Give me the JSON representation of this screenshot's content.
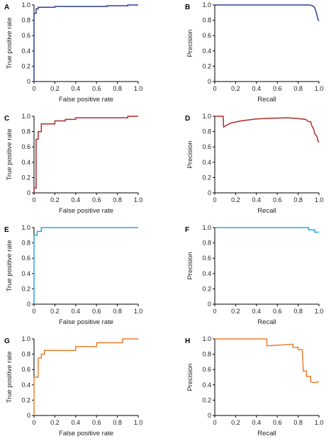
{
  "chart_data": [
    {
      "panel": "A",
      "type": "line",
      "xlabel": "False positive rate",
      "ylabel": "True positive rate",
      "xticks": [
        "0",
        "0.2",
        "0.4",
        "0.6",
        "0.8",
        "1.0"
      ],
      "yticks": [
        "0",
        "0.2",
        "0.4",
        "0.6",
        "0.8",
        "1.0"
      ],
      "xlim": [
        0,
        1
      ],
      "ylim": [
        0,
        1
      ],
      "color": "#2c3e99",
      "series": [
        {
          "points": [
            [
              0,
              0
            ],
            [
              0,
              0.89
            ],
            [
              0.02,
              0.89
            ],
            [
              0.02,
              0.95
            ],
            [
              0.04,
              0.95
            ],
            [
              0.04,
              0.97
            ],
            [
              0.2,
              0.97
            ],
            [
              0.2,
              0.98
            ],
            [
              0.7,
              0.98
            ],
            [
              0.7,
              0.99
            ],
            [
              0.9,
              0.99
            ],
            [
              0.9,
              1.0
            ],
            [
              1.0,
              1.0
            ]
          ]
        }
      ]
    },
    {
      "panel": "B",
      "type": "line",
      "xlabel": "Recall",
      "ylabel": "Precision",
      "xticks": [
        "0",
        "0.2",
        "0.4",
        "0.6",
        "0.8",
        "1.0"
      ],
      "yticks": [
        "0",
        "0.2",
        "0.4",
        "0.6",
        "0.8",
        "1.0"
      ],
      "xlim": [
        0,
        1
      ],
      "ylim": [
        0,
        1
      ],
      "color": "#2c3e99",
      "series": [
        {
          "points": [
            [
              0,
              1.0
            ],
            [
              0.9,
              1.0
            ],
            [
              0.93,
              0.995
            ],
            [
              0.95,
              0.98
            ],
            [
              0.96,
              0.96
            ],
            [
              0.97,
              0.92
            ],
            [
              0.98,
              0.87
            ],
            [
              0.985,
              0.84
            ],
            [
              0.99,
              0.81
            ],
            [
              1.0,
              0.79
            ]
          ]
        }
      ]
    },
    {
      "panel": "C",
      "type": "line",
      "xlabel": "False positive rate",
      "ylabel": "True positive rate",
      "xticks": [
        "0",
        "0.2",
        "0.4",
        "0.6",
        "0.8",
        "1.0"
      ],
      "yticks": [
        "0",
        "0.2",
        "0.4",
        "0.6",
        "0.8",
        "1.0"
      ],
      "xlim": [
        0,
        1
      ],
      "ylim": [
        0,
        1
      ],
      "color": "#b22a2a",
      "series": [
        {
          "points": [
            [
              0,
              0
            ],
            [
              0,
              0.06
            ],
            [
              0.02,
              0.06
            ],
            [
              0.02,
              0.7
            ],
            [
              0.04,
              0.7
            ],
            [
              0.04,
              0.8
            ],
            [
              0.07,
              0.8
            ],
            [
              0.07,
              0.9
            ],
            [
              0.2,
              0.9
            ],
            [
              0.2,
              0.94
            ],
            [
              0.3,
              0.94
            ],
            [
              0.3,
              0.96
            ],
            [
              0.4,
              0.96
            ],
            [
              0.4,
              0.98
            ],
            [
              0.9,
              0.98
            ],
            [
              0.9,
              1.0
            ],
            [
              1.0,
              1.0
            ]
          ]
        }
      ]
    },
    {
      "panel": "D",
      "type": "line",
      "xlabel": "Recall",
      "ylabel": "Precision",
      "xticks": [
        "0",
        "0.2",
        "0.4",
        "0.6",
        "0.8",
        "1.0"
      ],
      "yticks": [
        "0",
        "0.2",
        "0.4",
        "0.6",
        "0.8",
        "1.0"
      ],
      "xlim": [
        0,
        1
      ],
      "ylim": [
        0,
        1
      ],
      "color": "#b22a2a",
      "series": [
        {
          "points": [
            [
              0,
              1.0
            ],
            [
              0.08,
              1.0
            ],
            [
              0.085,
              0.86
            ],
            [
              0.15,
              0.91
            ],
            [
              0.25,
              0.94
            ],
            [
              0.4,
              0.965
            ],
            [
              0.55,
              0.975
            ],
            [
              0.7,
              0.98
            ],
            [
              0.8,
              0.97
            ],
            [
              0.87,
              0.96
            ],
            [
              0.9,
              0.93
            ],
            [
              0.92,
              0.93
            ],
            [
              0.93,
              0.88
            ],
            [
              0.95,
              0.83
            ],
            [
              0.96,
              0.77
            ],
            [
              0.98,
              0.74
            ],
            [
              0.99,
              0.68
            ],
            [
              1.0,
              0.66
            ]
          ]
        }
      ]
    },
    {
      "panel": "E",
      "type": "line",
      "xlabel": "False positive rate",
      "ylabel": "True positive rate",
      "xticks": [
        "0",
        "0.2",
        "0.4",
        "0.6",
        "0.8",
        "1.0"
      ],
      "yticks": [
        "0",
        "0.2",
        "0.4",
        "0.6",
        "0.8",
        "1.0"
      ],
      "xlim": [
        0,
        1
      ],
      "ylim": [
        0,
        1
      ],
      "color": "#2aa7d6",
      "series": [
        {
          "points": [
            [
              0,
              0
            ],
            [
              0,
              0.9
            ],
            [
              0.03,
              0.9
            ],
            [
              0.03,
              0.95
            ],
            [
              0.07,
              0.95
            ],
            [
              0.07,
              1.0
            ],
            [
              1.0,
              1.0
            ]
          ]
        }
      ]
    },
    {
      "panel": "F",
      "type": "line",
      "xlabel": "Recall",
      "ylabel": "Precision",
      "xticks": [
        "0",
        "0.2",
        "0.4",
        "0.6",
        "0.8",
        "1.0"
      ],
      "yticks": [
        "0",
        "0.2",
        "0.4",
        "0.6",
        "0.8",
        "1.0"
      ],
      "xlim": [
        0,
        1
      ],
      "ylim": [
        0,
        1
      ],
      "color": "#2aa7d6",
      "series": [
        {
          "points": [
            [
              0,
              1.0
            ],
            [
              0.9,
              1.0
            ],
            [
              0.9,
              0.97
            ],
            [
              0.96,
              0.97
            ],
            [
              0.96,
              0.94
            ],
            [
              1.0,
              0.94
            ]
          ]
        }
      ]
    },
    {
      "panel": "G",
      "type": "line",
      "xlabel": "False positive rate",
      "ylabel": "True positive rate",
      "xticks": [
        "0",
        "0.2",
        "0.4",
        "0.6",
        "0.8",
        "1.0"
      ],
      "yticks": [
        "0",
        "0.2",
        "0.4",
        "0.6",
        "0.8",
        "1.0"
      ],
      "xlim": [
        0,
        1
      ],
      "ylim": [
        0,
        1
      ],
      "color": "#ee7d2c",
      "series": [
        {
          "points": [
            [
              0,
              0
            ],
            [
              0,
              0.5
            ],
            [
              0.04,
              0.5
            ],
            [
              0.04,
              0.75
            ],
            [
              0.07,
              0.75
            ],
            [
              0.07,
              0.8
            ],
            [
              0.1,
              0.8
            ],
            [
              0.1,
              0.85
            ],
            [
              0.4,
              0.85
            ],
            [
              0.4,
              0.9
            ],
            [
              0.6,
              0.9
            ],
            [
              0.6,
              0.95
            ],
            [
              0.85,
              0.95
            ],
            [
              0.85,
              1.0
            ],
            [
              1.0,
              1.0
            ]
          ]
        }
      ]
    },
    {
      "panel": "H",
      "type": "line",
      "xlabel": "Recall",
      "ylabel": "Precision",
      "xticks": [
        "0",
        "0.2",
        "0.4",
        "0.6",
        "0.8",
        "1.0"
      ],
      "yticks": [
        "0",
        "0.2",
        "0.4",
        "0.6",
        "0.8",
        "1.0"
      ],
      "xlim": [
        0,
        1
      ],
      "ylim": [
        0,
        1
      ],
      "color": "#ee7d2c",
      "series": [
        {
          "points": [
            [
              0,
              1.0
            ],
            [
              0.5,
              1.0
            ],
            [
              0.5,
              0.91
            ],
            [
              0.75,
              0.93
            ],
            [
              0.75,
              0.89
            ],
            [
              0.8,
              0.89
            ],
            [
              0.8,
              0.86
            ],
            [
              0.84,
              0.86
            ],
            [
              0.85,
              0.58
            ],
            [
              0.88,
              0.58
            ],
            [
              0.88,
              0.51
            ],
            [
              0.92,
              0.51
            ],
            [
              0.92,
              0.44
            ],
            [
              0.95,
              0.43
            ],
            [
              1.0,
              0.44
            ]
          ]
        }
      ]
    }
  ]
}
